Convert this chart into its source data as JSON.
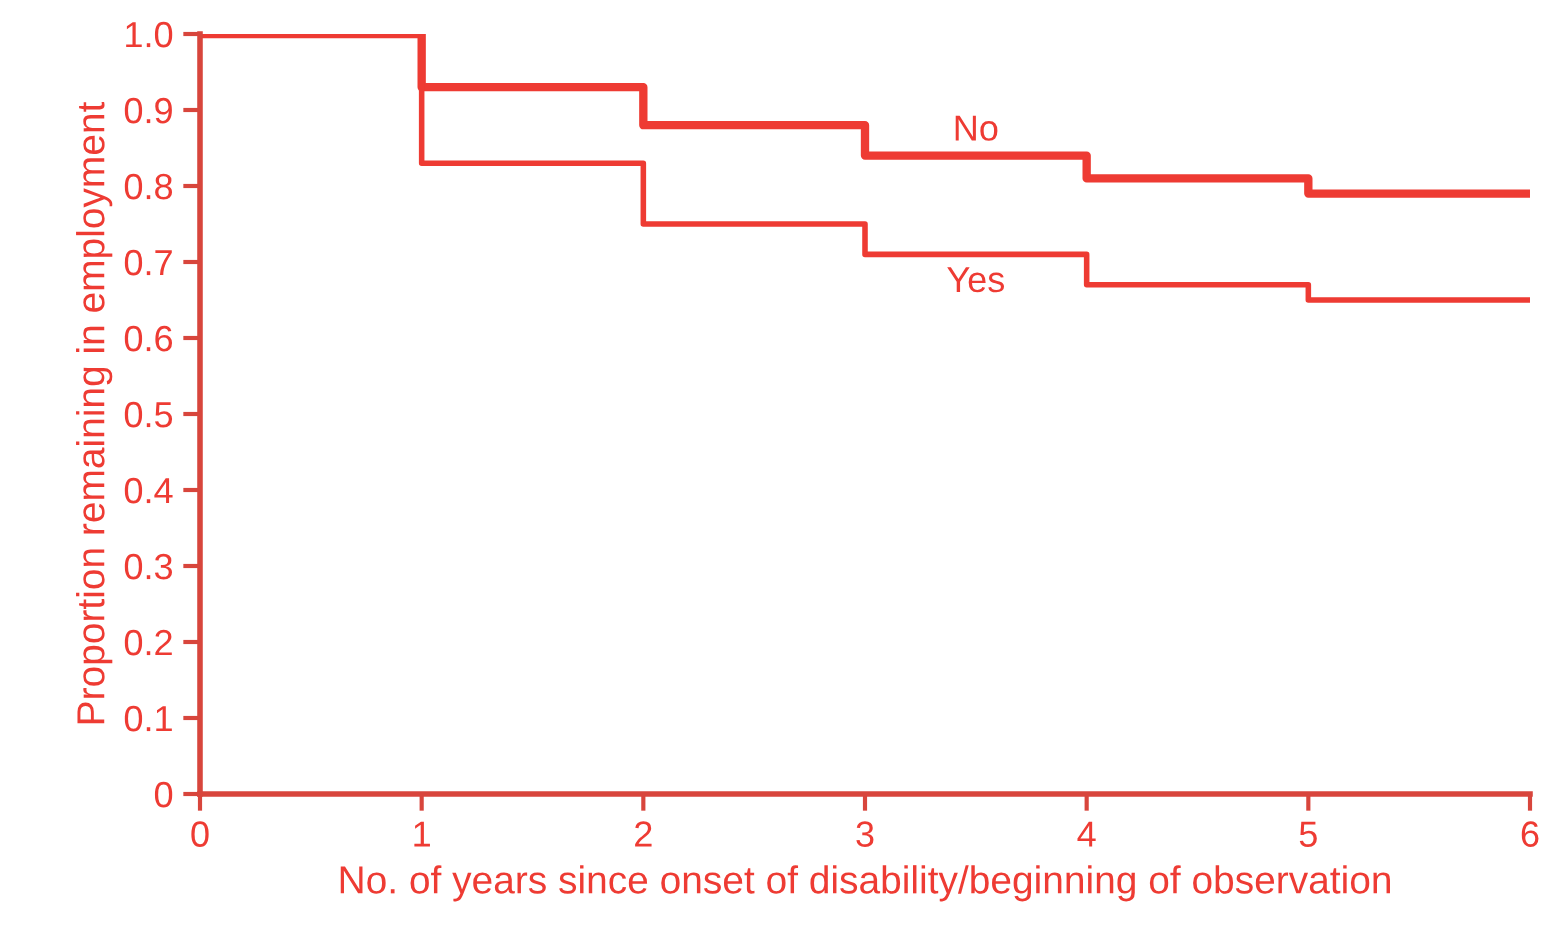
{
  "chart_data": {
    "type": "step",
    "xlabel": "No. of years since onset of disability/beginning of observation",
    "ylabel": "Proportion remaining in employment",
    "x": [
      0,
      1,
      2,
      3,
      4,
      5,
      6
    ],
    "series": [
      {
        "name": "No",
        "color": "#ee3b33",
        "values": [
          1.0,
          0.93,
          0.88,
          0.84,
          0.81,
          0.79,
          0.79
        ]
      },
      {
        "name": "Yes",
        "color": "#ee3b33",
        "values": [
          1.0,
          0.83,
          0.75,
          0.71,
          0.67,
          0.65,
          0.65
        ]
      }
    ],
    "xlim": [
      0,
      6
    ],
    "xticks": [
      0,
      1,
      2,
      3,
      4,
      5,
      6
    ],
    "ylim": [
      0,
      1.0
    ],
    "yticks": [
      0,
      0.1,
      0.2,
      0.3,
      0.4,
      0.5,
      0.6,
      0.7,
      0.8,
      0.9,
      {
        "value": 1.0,
        "label": "1.0"
      }
    ],
    "grid": false,
    "legend": false
  }
}
